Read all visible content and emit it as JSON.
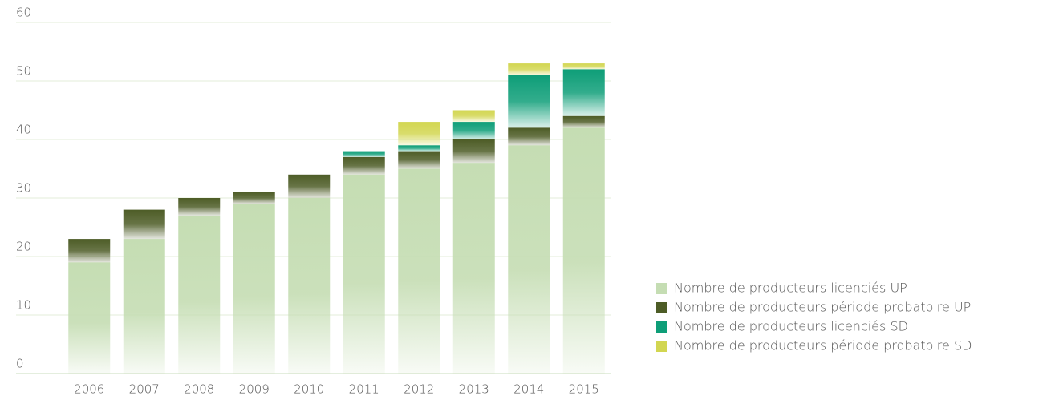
{
  "chart_data": {
    "type": "stacked_bar",
    "categories": [
      "2006",
      "2007",
      "2008",
      "2009",
      "2010",
      "2011",
      "2012",
      "2013",
      "2014",
      "2015"
    ],
    "series": [
      {
        "name": "Nombre de producteurs licenciés UP",
        "color": "#c5ddb3",
        "values": [
          19,
          23,
          27,
          29,
          30,
          34,
          35,
          36,
          39,
          42
        ]
      },
      {
        "name": "Nombre de producteurs période probatoire UP",
        "color": "#4d5c26",
        "values": [
          4,
          5,
          3,
          2,
          4,
          3,
          3,
          4,
          3,
          2
        ]
      },
      {
        "name": "Nombre de producteurs licenciés SD",
        "color": "#0e9e78",
        "values": [
          0,
          0,
          0,
          0,
          0,
          1,
          1,
          3,
          9,
          8
        ]
      },
      {
        "name": "Nombre de producteurs période probatoire SD",
        "color": "#d2d651",
        "values": [
          0,
          0,
          0,
          0,
          0,
          0,
          4,
          2,
          2,
          1
        ]
      }
    ],
    "ylim": [
      0,
      60
    ],
    "yticks": [
      0,
      10,
      20,
      30,
      40,
      50,
      60
    ],
    "grid": true,
    "legend": "right"
  }
}
